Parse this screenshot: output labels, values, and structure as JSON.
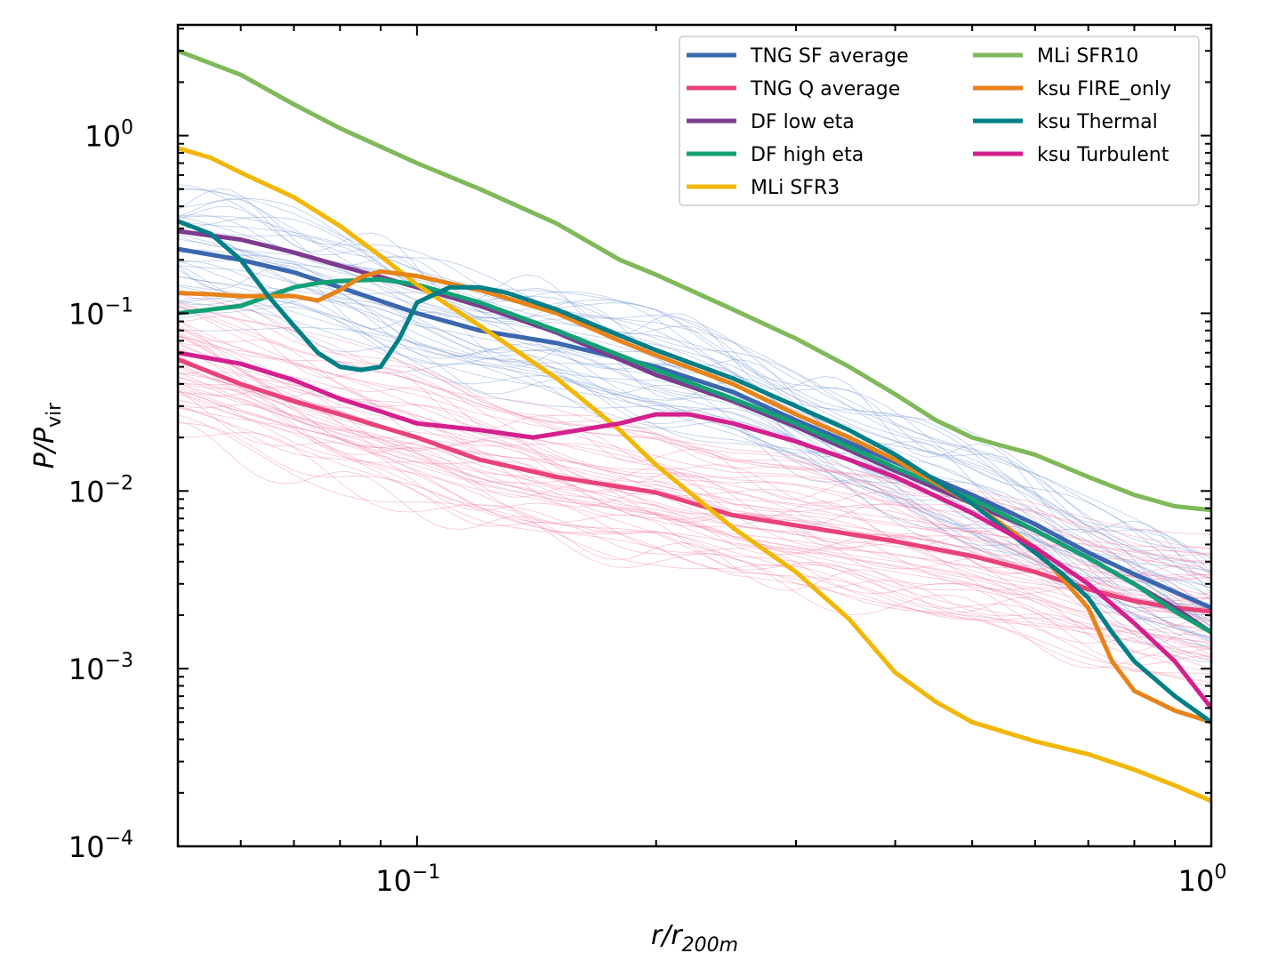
{
  "chart_data": {
    "type": "line",
    "xscale": "log",
    "yscale": "log",
    "xlim": [
      0.05,
      1.0
    ],
    "ylim": [
      0.0001,
      4.2
    ],
    "xlabel": "r/r",
    "xlabel_sub": "200m",
    "ylabel": "P/P",
    "ylabel_sub": "vir",
    "legend_placement": "top-right",
    "legend_columns": 2,
    "x_major_ticks": [
      {
        "value": 0.1,
        "exp": "−1"
      },
      {
        "value": 1.0,
        "exp": "0"
      }
    ],
    "y_major_ticks": [
      {
        "value": 1.0,
        "exp": "0"
      },
      {
        "value": 0.1,
        "exp": "−1"
      },
      {
        "value": 0.01,
        "exp": "−2"
      },
      {
        "value": 0.001,
        "exp": "−3"
      },
      {
        "value": 0.0001,
        "exp": "−4"
      }
    ],
    "tick_base": "10",
    "series": [
      {
        "name": "TNG SF average",
        "color": "#3b67ae",
        "x": [
          0.05,
          0.06,
          0.07,
          0.08,
          0.1,
          0.12,
          0.15,
          0.2,
          0.25,
          0.3,
          0.4,
          0.5,
          0.6,
          0.7,
          0.8,
          0.9,
          1.0
        ],
        "y": [
          0.23,
          0.2,
          0.17,
          0.14,
          0.1,
          0.08,
          0.068,
          0.05,
          0.036,
          0.025,
          0.0145,
          0.0095,
          0.0065,
          0.0045,
          0.0034,
          0.0027,
          0.0022
        ]
      },
      {
        "name": "TNG Q average",
        "color": "#e8427a",
        "x": [
          0.05,
          0.06,
          0.07,
          0.08,
          0.09,
          0.1,
          0.12,
          0.15,
          0.2,
          0.25,
          0.3,
          0.4,
          0.5,
          0.6,
          0.7,
          0.8,
          0.9,
          1.0
        ],
        "y": [
          0.055,
          0.04,
          0.032,
          0.027,
          0.023,
          0.02,
          0.015,
          0.012,
          0.0098,
          0.0073,
          0.0064,
          0.0052,
          0.0043,
          0.0035,
          0.0028,
          0.0024,
          0.0022,
          0.0021
        ]
      },
      {
        "name": "DF low eta",
        "color": "#7d3b8f",
        "x": [
          0.05,
          0.06,
          0.07,
          0.08,
          0.09,
          0.1,
          0.12,
          0.15,
          0.18,
          0.2,
          0.25,
          0.3,
          0.35,
          0.4,
          0.5,
          0.6,
          0.7,
          0.8,
          0.9,
          1.0
        ],
        "y": [
          0.29,
          0.26,
          0.22,
          0.185,
          0.16,
          0.14,
          0.11,
          0.078,
          0.055,
          0.045,
          0.032,
          0.023,
          0.017,
          0.013,
          0.0085,
          0.006,
          0.0042,
          0.003,
          0.0022,
          0.0016
        ]
      },
      {
        "name": "DF high eta",
        "color": "#13a075",
        "x": [
          0.05,
          0.055,
          0.06,
          0.065,
          0.07,
          0.075,
          0.08,
          0.09,
          0.1,
          0.12,
          0.15,
          0.18,
          0.2,
          0.25,
          0.3,
          0.4,
          0.5,
          0.6,
          0.7,
          0.8,
          0.9,
          1.0
        ],
        "y": [
          0.1,
          0.105,
          0.11,
          0.125,
          0.14,
          0.148,
          0.152,
          0.155,
          0.145,
          0.115,
          0.08,
          0.058,
          0.048,
          0.033,
          0.024,
          0.0135,
          0.009,
          0.006,
          0.0042,
          0.003,
          0.0021,
          0.0016
        ]
      },
      {
        "name": "MLi SFR3",
        "color": "#f2b705",
        "x": [
          0.05,
          0.055,
          0.06,
          0.07,
          0.08,
          0.09,
          0.1,
          0.12,
          0.15,
          0.18,
          0.2,
          0.25,
          0.3,
          0.35,
          0.4,
          0.45,
          0.5,
          0.6,
          0.7,
          0.8,
          0.9,
          1.0
        ],
        "y": [
          0.85,
          0.75,
          0.62,
          0.45,
          0.31,
          0.21,
          0.145,
          0.085,
          0.043,
          0.022,
          0.014,
          0.0062,
          0.0035,
          0.0019,
          0.00095,
          0.00065,
          0.0005,
          0.00039,
          0.00033,
          0.00027,
          0.00022,
          0.00018
        ]
      },
      {
        "name": "MLi SFR10",
        "color": "#7fb95a",
        "x": [
          0.05,
          0.06,
          0.07,
          0.08,
          0.1,
          0.12,
          0.15,
          0.18,
          0.2,
          0.25,
          0.3,
          0.35,
          0.4,
          0.45,
          0.5,
          0.6,
          0.7,
          0.8,
          0.9,
          1.0
        ],
        "y": [
          3.0,
          2.2,
          1.5,
          1.1,
          0.7,
          0.5,
          0.32,
          0.2,
          0.165,
          0.105,
          0.072,
          0.05,
          0.035,
          0.025,
          0.02,
          0.016,
          0.012,
          0.0095,
          0.0082,
          0.0078
        ]
      },
      {
        "name": "ksu FIRE_only",
        "color": "#e6841a",
        "x": [
          0.05,
          0.055,
          0.06,
          0.065,
          0.07,
          0.075,
          0.08,
          0.085,
          0.09,
          0.1,
          0.12,
          0.15,
          0.18,
          0.2,
          0.25,
          0.3,
          0.35,
          0.4,
          0.5,
          0.6,
          0.65,
          0.7,
          0.75,
          0.8,
          0.9,
          1.0
        ],
        "y": [
          0.13,
          0.128,
          0.125,
          0.125,
          0.125,
          0.118,
          0.135,
          0.16,
          0.172,
          0.162,
          0.135,
          0.1,
          0.07,
          0.058,
          0.04,
          0.027,
          0.02,
          0.015,
          0.0085,
          0.0048,
          0.0032,
          0.0022,
          0.0011,
          0.00075,
          0.00058,
          0.0005
        ]
      },
      {
        "name": "ksu Thermal",
        "color": "#007f87",
        "x": [
          0.05,
          0.055,
          0.06,
          0.065,
          0.07,
          0.075,
          0.08,
          0.085,
          0.09,
          0.095,
          0.1,
          0.11,
          0.12,
          0.13,
          0.15,
          0.18,
          0.2,
          0.25,
          0.3,
          0.35,
          0.4,
          0.5,
          0.6,
          0.65,
          0.7,
          0.75,
          0.8,
          0.9,
          1.0
        ],
        "y": [
          0.33,
          0.28,
          0.2,
          0.125,
          0.085,
          0.06,
          0.05,
          0.048,
          0.05,
          0.072,
          0.115,
          0.14,
          0.14,
          0.13,
          0.105,
          0.075,
          0.062,
          0.043,
          0.03,
          0.022,
          0.016,
          0.0085,
          0.0045,
          0.0034,
          0.0025,
          0.0016,
          0.0011,
          0.0007,
          0.0005
        ]
      },
      {
        "name": "ksu Turbulent",
        "color": "#d4208e",
        "x": [
          0.05,
          0.06,
          0.07,
          0.08,
          0.09,
          0.1,
          0.12,
          0.14,
          0.15,
          0.18,
          0.2,
          0.22,
          0.25,
          0.3,
          0.35,
          0.4,
          0.5,
          0.6,
          0.7,
          0.8,
          0.9,
          1.0
        ],
        "y": [
          0.06,
          0.052,
          0.042,
          0.033,
          0.028,
          0.024,
          0.022,
          0.02,
          0.021,
          0.024,
          0.027,
          0.027,
          0.024,
          0.019,
          0.015,
          0.012,
          0.0075,
          0.0048,
          0.003,
          0.0018,
          0.0011,
          0.0006
        ]
      }
    ],
    "background_bundles": [
      {
        "color": "#7b9bd2",
        "count": 40,
        "base_series": 0,
        "spread": 0.28,
        "opacity": 0.45
      },
      {
        "color": "#f07fa8",
        "count": 55,
        "base_series": 1,
        "spread": 0.35,
        "opacity": 0.42
      }
    ]
  }
}
